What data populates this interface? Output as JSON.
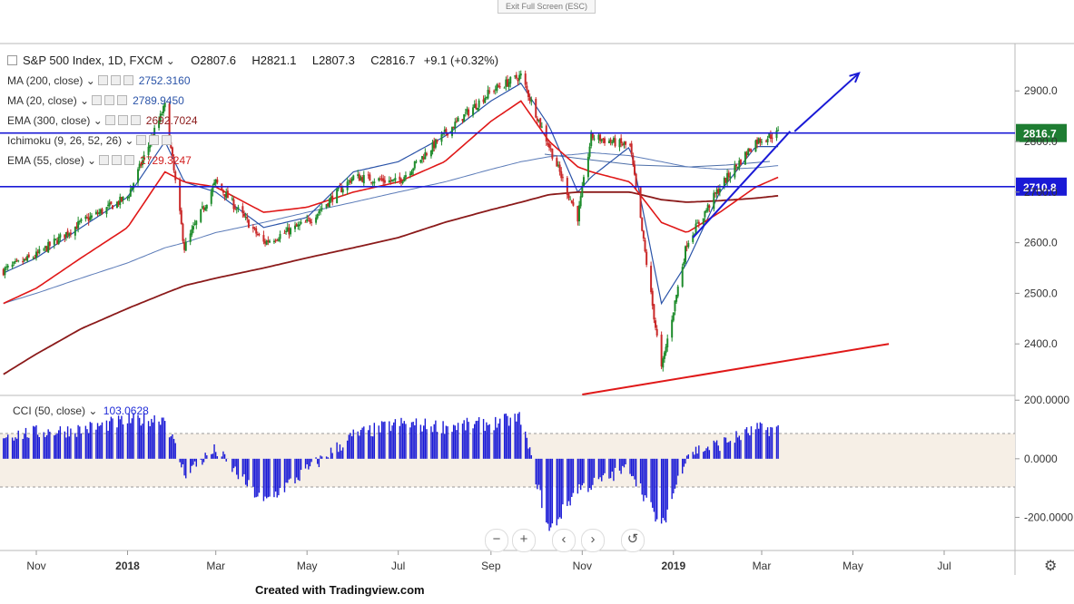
{
  "window": {
    "exit_label": "Exit Full Screen (ESC)"
  },
  "header": {
    "symbol": "S&P 500 Index, 1D, FXCM",
    "open": "O2807.6",
    "high": "H2821.1",
    "low": "L2807.3",
    "close": "C2816.7",
    "change": "+9.1 (+0.32%)"
  },
  "indicators": [
    {
      "name": "MA (200, close)",
      "value": "2752.3160",
      "color": "#2a53a8"
    },
    {
      "name": "MA (20, close)",
      "value": "2789.9450",
      "color": "#2a53a8"
    },
    {
      "name": "EMA (300, close)",
      "value": "2692.7024",
      "color": "#8b1a1a"
    },
    {
      "name": "Ichimoku (9, 26, 52, 26)",
      "value": "",
      "color": "#7a7a7a"
    },
    {
      "name": "EMA (55, close)",
      "value": "2729.3247",
      "color": "#d22020"
    }
  ],
  "cci": {
    "name": "CCI (50, close)",
    "value": "103.0628",
    "color": "#1f2bd8"
  },
  "colors": {
    "up": "#1e8c2c",
    "down": "#c92828",
    "level_line": "#1a1ad6",
    "ma200": "#5b7bb8",
    "ma20": "#2a53a8",
    "ema55": "#e01818",
    "ema300": "#8b1a1a",
    "trend_red": "#e01818",
    "trend_blue": "#1a1ad6"
  },
  "price_axis": {
    "ticks": [
      "2900.0",
      "2800.0",
      "2700.0",
      "2600.0",
      "2500.0",
      "2400.0"
    ]
  },
  "cci_axis": {
    "ticks": [
      "200.0000",
      "0.0000",
      "-200.0000"
    ]
  },
  "time_axis": [
    "Nov",
    "2018",
    "Mar",
    "May",
    "Jul",
    "Sep",
    "Nov",
    "2019",
    "Mar",
    "May",
    "Jul"
  ],
  "levels": [
    {
      "label": "2816.7",
      "value": 2816.7
    },
    {
      "label": "2710.8",
      "value": 2710.8
    }
  ],
  "toolbar": {
    "zoom_out": "−",
    "zoom_in": "+",
    "prev": "‹",
    "next": "›",
    "reset": "↺"
  },
  "footer": {
    "credit": "Created with Tradingview.com"
  },
  "chart_data": {
    "type": "line",
    "title": "S&P 500 Index, 1D, FXCM",
    "x": [
      "2017-10-10",
      "2017-11-01",
      "2017-12-01",
      "2018-01-01",
      "2018-01-26",
      "2018-02-08",
      "2018-03-01",
      "2018-04-02",
      "2018-05-01",
      "2018-06-01",
      "2018-07-01",
      "2018-08-01",
      "2018-09-01",
      "2018-09-21",
      "2018-10-10",
      "2018-10-29",
      "2018-11-07",
      "2018-12-03",
      "2018-12-24",
      "2019-01-10",
      "2019-02-01",
      "2019-02-25",
      "2019-03-12"
    ],
    "series": [
      {
        "name": "S&P 500 Index",
        "values": [
          2545,
          2575,
          2640,
          2690,
          2870,
          2590,
          2720,
          2600,
          2640,
          2730,
          2720,
          2815,
          2900,
          2930,
          2790,
          2650,
          2810,
          2790,
          2350,
          2600,
          2710,
          2800,
          2816.7
        ]
      },
      {
        "name": "MA (200, close)",
        "values": [
          2480,
          2500,
          2530,
          2560,
          2590,
          2600,
          2620,
          2640,
          2660,
          2680,
          2700,
          2720,
          2745,
          2760,
          2770,
          2775,
          2778,
          2772,
          2760,
          2750,
          2745,
          2748,
          2752.3
        ]
      },
      {
        "name": "MA (20, close)",
        "values": [
          2540,
          2570,
          2630,
          2690,
          2800,
          2720,
          2700,
          2630,
          2650,
          2740,
          2760,
          2810,
          2880,
          2915,
          2830,
          2700,
          2730,
          2790,
          2480,
          2560,
          2700,
          2790,
          2789.9
        ]
      },
      {
        "name": "EMA (300, close)",
        "values": [
          2340,
          2380,
          2430,
          2470,
          2500,
          2515,
          2530,
          2550,
          2570,
          2590,
          2610,
          2640,
          2665,
          2680,
          2695,
          2700,
          2700,
          2700,
          2685,
          2680,
          2683,
          2688,
          2692.7
        ]
      },
      {
        "name": "EMA (55, close)",
        "values": [
          2480,
          2510,
          2570,
          2630,
          2740,
          2720,
          2710,
          2660,
          2670,
          2700,
          2720,
          2760,
          2840,
          2880,
          2800,
          2750,
          2740,
          2720,
          2640,
          2620,
          2660,
          2710,
          2729.3
        ]
      }
    ],
    "cci": {
      "name": "CCI (50, close)",
      "values": [
        80,
        90,
        100,
        130,
        140,
        -50,
        30,
        -150,
        -40,
        80,
        120,
        110,
        120,
        140,
        -250,
        -100,
        -90,
        -30,
        -240,
        20,
        50,
        100,
        103.06
      ]
    },
    "ylim": [
      2300,
      2990
    ],
    "cci_ylim": [
      -310,
      210
    ],
    "horizontal_levels": [
      2816.7,
      2710.8
    ],
    "annotations": [
      {
        "type": "trendline",
        "color": "red",
        "from": [
          "2018-11-01",
          2300
        ],
        "to": [
          "2019-05-25",
          2400
        ]
      },
      {
        "type": "trendline",
        "color": "blue",
        "from": [
          "2019-01-14",
          2610
        ],
        "to": [
          "2019-03-20",
          2820
        ]
      },
      {
        "type": "arrow",
        "color": "blue",
        "from": [
          "2019-03-23",
          2820
        ],
        "to": [
          "2019-05-05",
          2935
        ]
      }
    ]
  }
}
